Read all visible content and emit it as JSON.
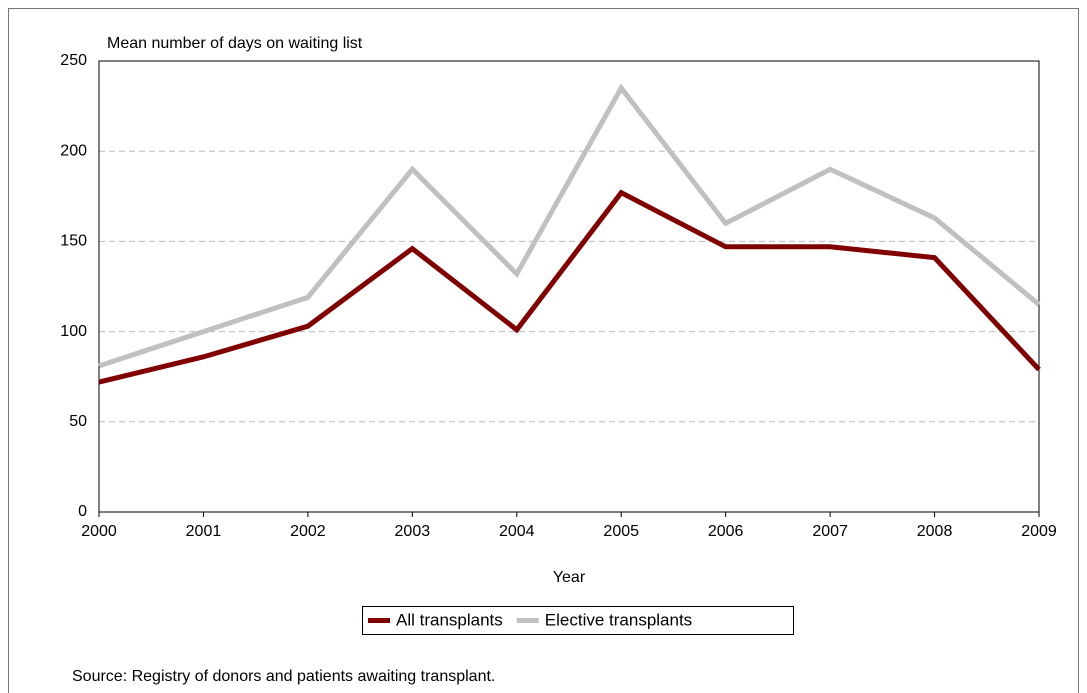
{
  "chart_data": {
    "type": "line",
    "y_label": "Mean number of days on waiting list",
    "x_label": "Year",
    "source": "Source: Registry of donors and patients awaiting transplant.",
    "x": [
      2000,
      2001,
      2002,
      2003,
      2004,
      2005,
      2006,
      2007,
      2008,
      2009
    ],
    "series": [
      {
        "name": "All transplants",
        "color": "#800000",
        "values": [
          72,
          86,
          103,
          146,
          101,
          177,
          147,
          147,
          141,
          79
        ]
      },
      {
        "name": "Elective transplants",
        "color": "#c0c0c0",
        "values": [
          81,
          100,
          119,
          190,
          132,
          235,
          160,
          190,
          163,
          115
        ]
      }
    ],
    "xlim": [
      2000,
      2009
    ],
    "xticks": [
      2000,
      2001,
      2002,
      2003,
      2004,
      2005,
      2006,
      2007,
      2008,
      2009
    ],
    "ylim": [
      0,
      250
    ],
    "yticks": [
      0,
      50,
      100,
      150,
      200,
      250
    ],
    "grid": true,
    "legend": "bottom"
  }
}
